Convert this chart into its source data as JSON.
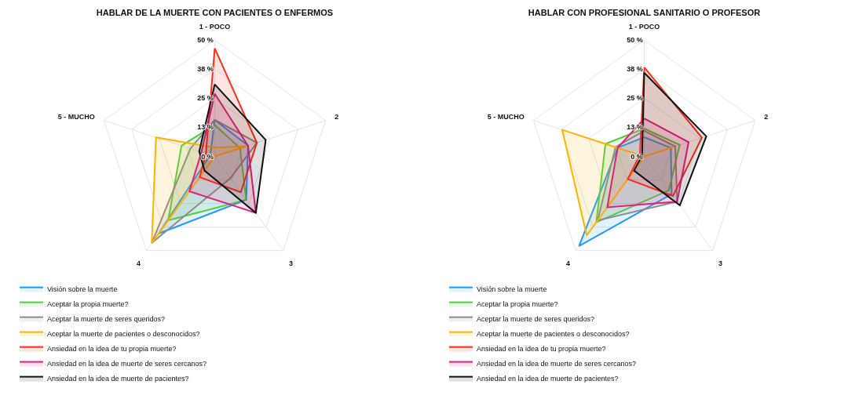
{
  "chart_data": [
    {
      "type": "radar",
      "title": "HABLAR DE LA MUERTE CON PACIENTES O ENFERMOS",
      "categories": [
        "1 - POCO",
        "2",
        "3",
        "4",
        "5 - MUCHO"
      ],
      "series": [
        {
          "name": "Visión sobre la muerte",
          "color": "#1e9bff",
          "values": [
            15.7,
            15,
            23,
            41,
            2
          ]
        },
        {
          "name": "Aceptar la propia muerte?",
          "color": "#4fd13a",
          "values": [
            13.6,
            11.4,
            23,
            34,
            15
          ]
        },
        {
          "name": "Aceptar la muerte de seres queridos?",
          "color": "#8c8c8c",
          "values": [
            15.7,
            19,
            11.5,
            46,
            11
          ]
        },
        {
          "name": "Aceptar la muerte de pacientes o desconocidos?",
          "color": "#ffb300",
          "values": [
            3.8,
            14,
            0,
            46,
            26.5
          ]
        },
        {
          "name": "Ansiedad en la idea de tu propia muerte?",
          "color": "#ff2d1a",
          "values": [
            46.5,
            19,
            19,
            11,
            4
          ]
        },
        {
          "name": "Ansiedad en la idea de muerte de seres cercanos?",
          "color": "#e0207a",
          "values": [
            27,
            15,
            30,
            18.5,
            6
          ]
        },
        {
          "name": "Ansiedad en la idea de muerte de pacientes?",
          "color": "#111111",
          "values": [
            31,
            23,
            30,
            7.5,
            7
          ]
        }
      ],
      "ylim": [
        0,
        50
      ],
      "yticks": [
        {
          "value": 0,
          "label": "0 %"
        },
        {
          "value": 12.5,
          "label": "13 %"
        },
        {
          "value": 25,
          "label": "25 %"
        },
        {
          "value": 37.5,
          "label": "38 %"
        },
        {
          "value": 50,
          "label": "50 %"
        }
      ],
      "grid": true,
      "legend": "bottom"
    },
    {
      "type": "radar",
      "title": "HABLAR CON PROFESIONAL SANITARIO O PROFESOR",
      "categories": [
        "1 - POCO",
        "2",
        "3",
        "4",
        "5 - MUCHO"
      ],
      "series": [
        {
          "name": "Visión sobre la muerte",
          "color": "#1e9bff",
          "values": [
            8.3,
            12,
            20,
            47.6,
            12
          ]
        },
        {
          "name": "Aceptar la propia muerte?",
          "color": "#4fd13a",
          "values": [
            12,
            16,
            18,
            35,
            17.5
          ]
        },
        {
          "name": "Aceptar la muerte de seres queridos?",
          "color": "#8c8c8c",
          "values": [
            11,
            14,
            24,
            34,
            13
          ]
        },
        {
          "name": "Aceptar la muerte de pacientes o desconocidos?",
          "color": "#ffb300",
          "values": [
            0,
            13,
            0,
            42,
            37
          ]
        },
        {
          "name": "Ansiedad en la idea de tu propia muerte?",
          "color": "#ff2d1a",
          "values": [
            38.3,
            26,
            21,
            12,
            2
          ]
        },
        {
          "name": "Ansiedad en la idea de muerte de seres cercanos?",
          "color": "#e0207a",
          "values": [
            16.3,
            20,
            24,
            27,
            12
          ]
        },
        {
          "name": "Ansiedad en la idea de muerte de pacientes?",
          "color": "#111111",
          "values": [
            36,
            28,
            26,
            7.5,
            1
          ]
        }
      ],
      "ylim": [
        0,
        50
      ],
      "yticks": [
        {
          "value": 0,
          "label": "0 %"
        },
        {
          "value": 12.5,
          "label": "13 %"
        },
        {
          "value": 25,
          "label": "25 %"
        },
        {
          "value": 37.5,
          "label": "38 %"
        },
        {
          "value": 50,
          "label": "50 %"
        }
      ],
      "grid": true,
      "legend": "bottom"
    }
  ]
}
